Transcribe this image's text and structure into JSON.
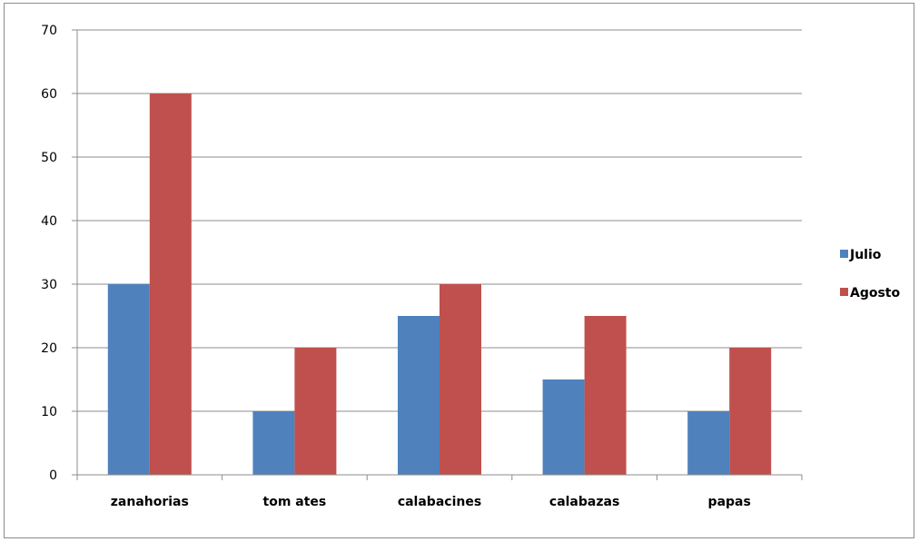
{
  "chart_data": {
    "type": "bar",
    "title": "",
    "xlabel": "",
    "ylabel": "",
    "categories": [
      "zanahorias",
      "tom ates",
      "calabacines",
      "calabazas",
      "papas"
    ],
    "series": [
      {
        "name": "Julio",
        "values": [
          30,
          10,
          25,
          15,
          10
        ],
        "color": "#4f81bd"
      },
      {
        "name": "Agosto",
        "values": [
          60,
          20,
          30,
          25,
          20
        ],
        "color": "#c0504d"
      }
    ],
    "ylim": [
      0,
      70
    ],
    "yticks": [
      0,
      10,
      20,
      30,
      40,
      50,
      60,
      70
    ],
    "grid": true,
    "legend": "right"
  }
}
